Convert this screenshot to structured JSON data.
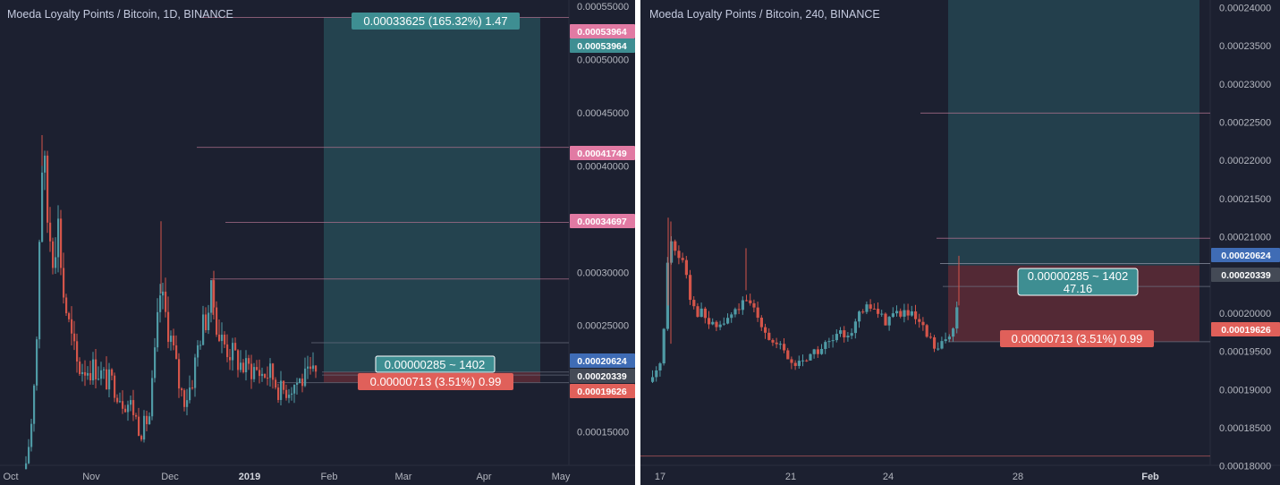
{
  "colors": {
    "background": "#1c2030",
    "up": "#4f9aa5",
    "down": "#d4554a",
    "target_zone": "#264a55",
    "stop_zone": "#5a2a36",
    "pink_tag": "#e17aa3",
    "teal_tag": "#3e8e92",
    "blue_tag": "#3f6cb5",
    "gray_tag": "#444a56",
    "red_tag": "#e0605a"
  },
  "chart_data": [
    {
      "type": "candlestick",
      "title": "Moeda Loyalty Points / Bitcoin, 1D, BINANCE",
      "x_ticks": [
        "Oct",
        "Nov",
        "Dec",
        "2019",
        "Feb",
        "Mar",
        "Apr",
        "May"
      ],
      "y_ticks": [
        "0.00015000",
        "0.00020000",
        "0.00025000",
        "0.00030000",
        "0.00035000",
        "0.00040000",
        "0.00045000",
        "0.00050000",
        "0.00055000"
      ],
      "ylim": [
        0.0001,
        0.000556
      ],
      "price_tags": [
        {
          "label": "0.00053964",
          "value": 0.00053964,
          "style": "pink"
        },
        {
          "label": "0.00053964",
          "value": 0.00053964,
          "style": "teal"
        },
        {
          "label": "0.00041749",
          "value": 0.00041749,
          "style": "pink"
        },
        {
          "label": "0.00034697",
          "value": 0.00034697,
          "style": "pink"
        },
        {
          "label": "0.00020624",
          "value": 0.00020624,
          "style": "blue"
        },
        {
          "label": "0.00020339",
          "value": 0.00020339,
          "style": "gray"
        },
        {
          "label": "0.00019626",
          "value": 0.00019626,
          "style": "red"
        }
      ],
      "target_label": "0.00033625 (165.32%) 1.47",
      "center_label": "0.00000285 ~ 1402",
      "stop_label": "0.00000713 (3.51%) 0.99"
    },
    {
      "type": "candlestick",
      "title": "Moeda Loyalty Points / Bitcoin, 240, BINANCE",
      "x_ticks": [
        "17",
        "21",
        "24",
        "28",
        "Feb"
      ],
      "y_ticks": [
        "0.00018000",
        "0.00018500",
        "0.00019000",
        "0.00019500",
        "0.00020000",
        "0.00020500",
        "0.00021000",
        "0.00021500",
        "0.00022000",
        "0.00022500",
        "0.00023000",
        "0.00023500",
        "0.00024000"
      ],
      "ylim": [
        0.0001775,
        0.000241
      ],
      "price_tags": [
        {
          "label": "0.00020624",
          "value": 0.00020624,
          "style": "blue"
        },
        {
          "label": "0.00020339",
          "value": 0.00020339,
          "style": "gray"
        },
        {
          "label": "0.00019626",
          "value": 0.00019626,
          "style": "red"
        }
      ],
      "center_label": "0.00000285 ~ 1402",
      "center_sub_label": "47.16",
      "stop_label": "0.00000713 (3.51%) 0.99"
    }
  ]
}
